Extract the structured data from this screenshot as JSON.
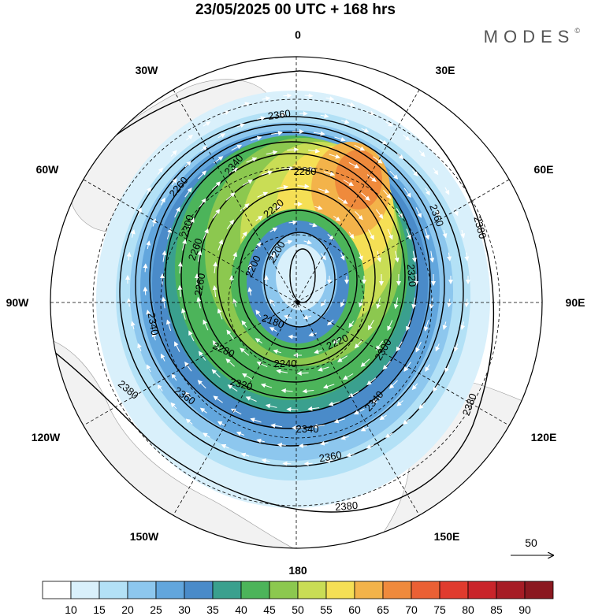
{
  "title": "23/05/2025  00 UTC  + 168 hrs",
  "brand": "MODES",
  "brand_mark": "©",
  "longitude_labels": [
    {
      "key": "n",
      "text": "0"
    },
    {
      "key": "e30",
      "text": "30E"
    },
    {
      "key": "e60",
      "text": "60E"
    },
    {
      "key": "e90",
      "text": "90E"
    },
    {
      "key": "e120",
      "text": "120E"
    },
    {
      "key": "e150",
      "text": "150E"
    },
    {
      "key": "s",
      "text": "180"
    },
    {
      "key": "w150",
      "text": "150W"
    },
    {
      "key": "w120",
      "text": "120W"
    },
    {
      "key": "w90",
      "text": "90W"
    },
    {
      "key": "w60",
      "text": "60W"
    },
    {
      "key": "w30",
      "text": "30W"
    }
  ],
  "contour_labels": [
    "2360",
    "2340",
    "2280",
    "2260",
    "2220",
    "2200",
    "2180",
    "2220",
    "2240",
    "2280",
    "2300",
    "2320",
    "2340",
    "2360",
    "2380",
    "2380",
    "2380",
    "2360",
    "2340",
    "2320",
    "2300",
    "2260",
    "2200",
    "2340",
    "2360",
    "2380",
    "2260"
  ],
  "vector_reference": {
    "label": "50"
  },
  "colorbar": {
    "colors": [
      "#ffffff",
      "#d9f0fb",
      "#b3e1f6",
      "#8dc7ee",
      "#62a6dd",
      "#4a8bc9",
      "#3aa08e",
      "#4cb45a",
      "#8cc84f",
      "#c9dd55",
      "#f5df55",
      "#f3b34a",
      "#ef8a3c",
      "#ea6034",
      "#e03b2e",
      "#c9242a",
      "#a61c25",
      "#8b1820"
    ],
    "labels": [
      "10",
      "15",
      "20",
      "25",
      "30",
      "35",
      "40",
      "45",
      "50",
      "55",
      "60",
      "65",
      "70",
      "75",
      "80",
      "85",
      "90"
    ]
  }
}
